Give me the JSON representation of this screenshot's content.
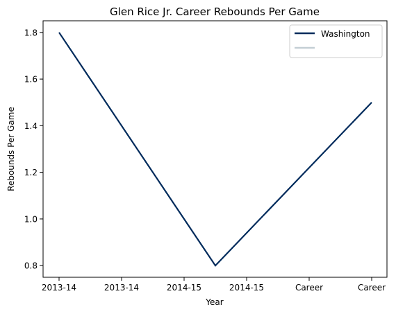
{
  "chart_data": {
    "type": "line",
    "title": "Glen Rice Jr. Career Rebounds Per Game",
    "xlabel": "Year",
    "ylabel": "Rebounds Per Game",
    "x_tick_labels": [
      "2013-14",
      "2013-14",
      "2014-15",
      "2014-15",
      "Career",
      "Career"
    ],
    "y_ticks": [
      0.8,
      1.0,
      1.2,
      1.4,
      1.6,
      1.8
    ],
    "ylim": [
      0.75,
      1.85
    ],
    "grid": false,
    "legend_position": "top-right",
    "series": [
      {
        "name": "Washington",
        "color": "#002B5C",
        "points": [
          {
            "x": "2013-14",
            "y": 1.8
          },
          {
            "x": "2014-15",
            "y": 0.8
          },
          {
            "x": "Career",
            "y": 1.5
          }
        ]
      },
      {
        "name": "",
        "color": "#C4CED4",
        "points": []
      }
    ]
  }
}
